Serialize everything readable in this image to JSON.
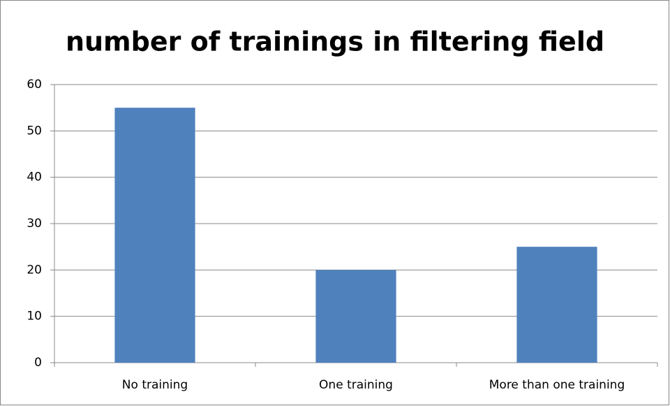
{
  "chart_data": {
    "type": "bar",
    "title": "number of trainings in filtering field",
    "categories": [
      "No training",
      "One training",
      "More than one training"
    ],
    "values": [
      55,
      20,
      25
    ],
    "color": "#4f81bd",
    "ylim": [
      0,
      60
    ],
    "yticks": [
      0,
      10,
      20,
      30,
      40,
      50,
      60
    ],
    "grid": true
  }
}
